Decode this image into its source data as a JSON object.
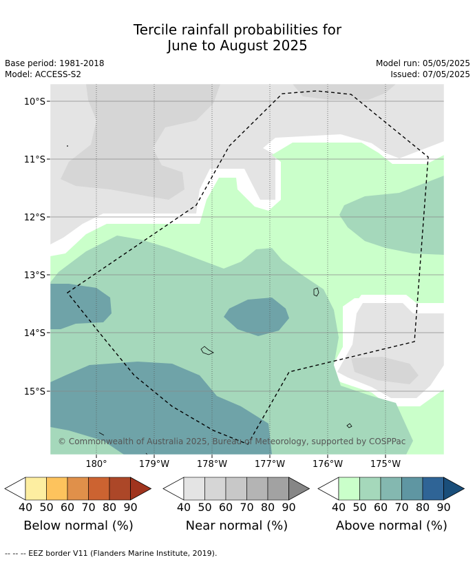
{
  "title_line1": "Tercile rainfall probabilities for",
  "title_line2": "June to August 2025",
  "base_period": "Base period: 1981-2018",
  "model": "Model: ACCESS-S2",
  "model_run": "Model run: 05/05/2025",
  "issued": "Issued: 07/05/2025",
  "lat_labels": [
    "10°S",
    "11°S",
    "12°S",
    "13°S",
    "14°S",
    "15°S"
  ],
  "lon_labels": [
    "180°",
    "179°W",
    "178°W",
    "177°W",
    "176°W",
    "175°W"
  ],
  "copyright": "© Commonwealth of Australia 2025, Bureau of Meteorology, supported by COSPPac",
  "legend": {
    "ticks": [
      "40",
      "50",
      "60",
      "70",
      "80",
      "90"
    ],
    "below": {
      "label": "Below normal (%)",
      "colors": [
        "#fdeea1",
        "#fdc35d",
        "#e0904a",
        "#cc6331",
        "#ac4728",
        "#a0341e"
      ]
    },
    "near": {
      "label": "Near normal (%)",
      "colors": [
        "#e4e4e4",
        "#d6d6d6",
        "#c8c8c8",
        "#b4b4b4",
        "#a2a2a2",
        "#868686"
      ]
    },
    "above": {
      "label": "Above normal (%)",
      "colors": [
        "#caffca",
        "#a5d8bb",
        "#84b8b0",
        "#5f96a2",
        "#2f6496",
        "#1a4e7a"
      ]
    }
  },
  "footer": "--  --  -- EEZ border V11 (Flanders Marine Institute, 2019)."
}
